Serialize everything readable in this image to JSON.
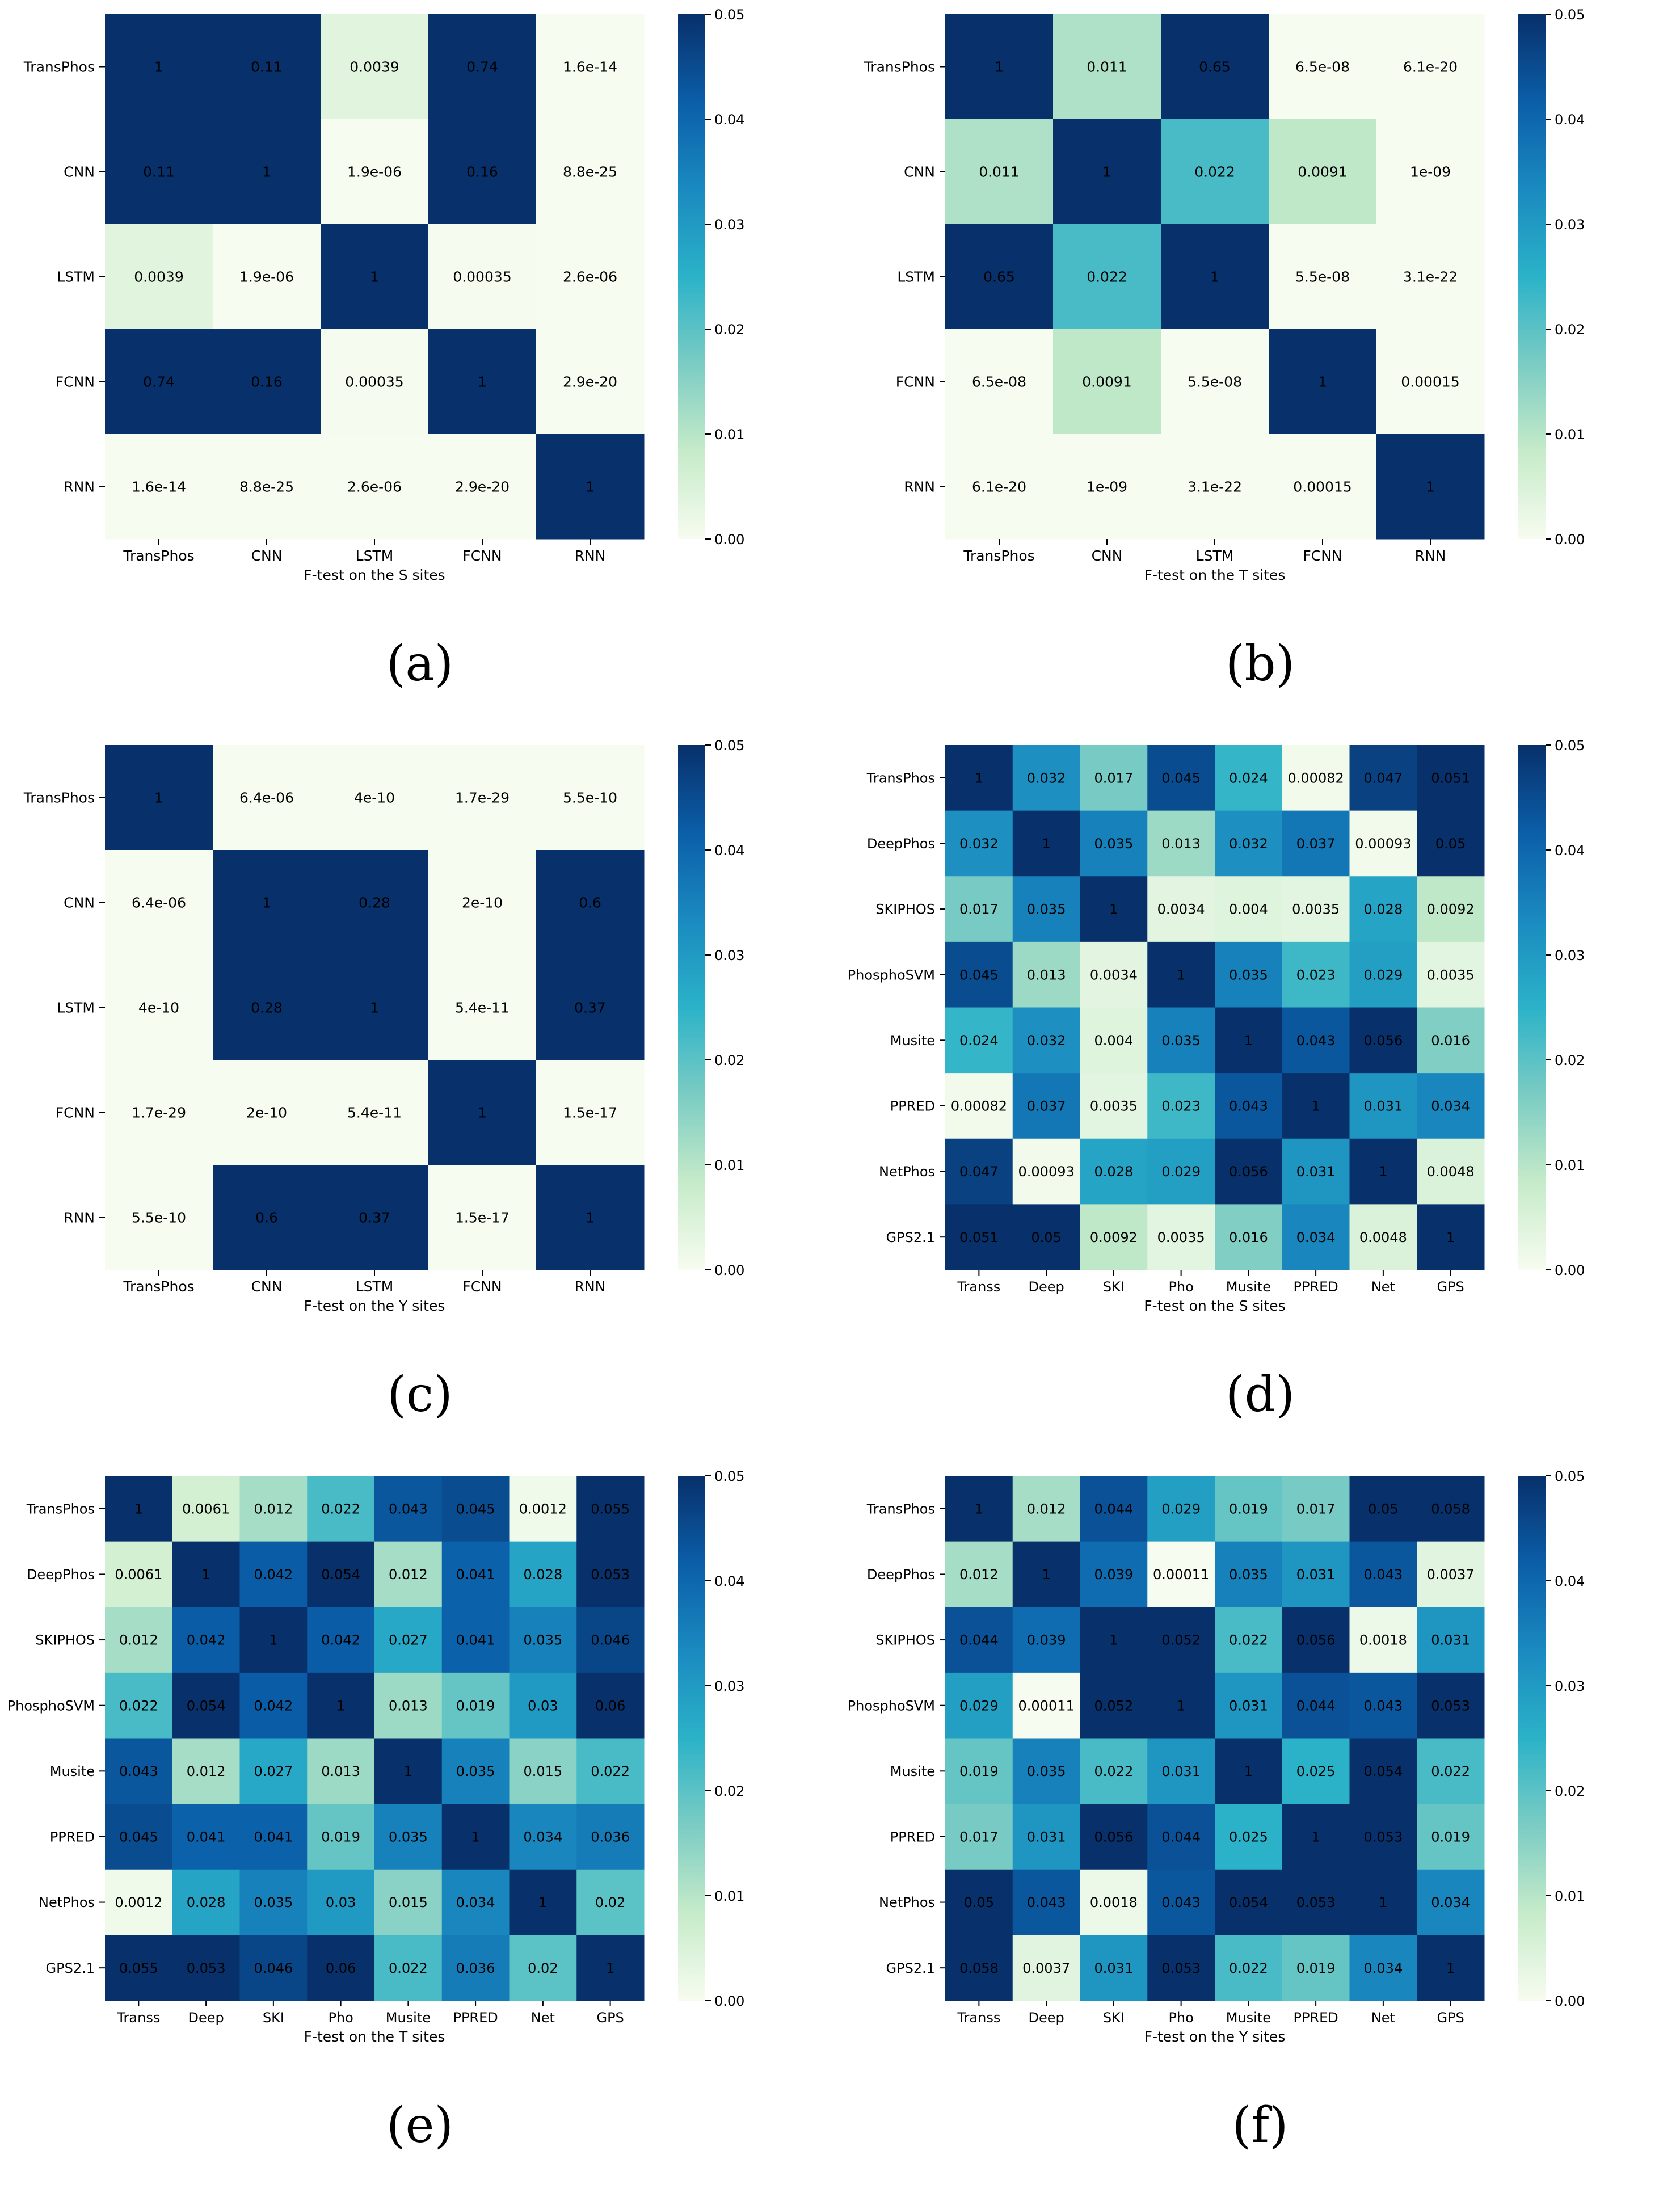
{
  "colormap": [
    "#f7fcf0",
    "#c6ebc9",
    "#7bccc4",
    "#2bb2c8",
    "#1a8ac0",
    "#0b5ea8",
    "#08306b"
  ],
  "chart_data": [
    {
      "panel": "(a)",
      "type": "heatmap",
      "xlabel": "F-test on the S sites",
      "row_labels": [
        "TransPhos",
        "CNN",
        "LSTM",
        "FCNN",
        "RNN"
      ],
      "col_labels": [
        "TransPhos",
        "CNN",
        "LSTM",
        "FCNN",
        "RNN"
      ],
      "values": [
        [
          1,
          0.11,
          0.0039,
          0.74,
          1.6e-14
        ],
        [
          0.11,
          1,
          1.9e-06,
          0.16,
          8.8e-25
        ],
        [
          0.0039,
          1.9e-06,
          1,
          0.00035,
          2.6e-06
        ],
        [
          0.74,
          0.16,
          0.00035,
          1,
          2.9e-20
        ],
        [
          1.6e-14,
          8.8e-25,
          2.6e-06,
          2.9e-20,
          1
        ]
      ],
      "annotations": [
        [
          "1",
          "0.11",
          "0.0039",
          "0.74",
          "1.6e-14"
        ],
        [
          "0.11",
          "1",
          "1.9e-06",
          "0.16",
          "8.8e-25"
        ],
        [
          "0.0039",
          "1.9e-06",
          "1",
          "0.00035",
          "2.6e-06"
        ],
        [
          "0.74",
          "0.16",
          "0.00035",
          "1",
          "2.9e-20"
        ],
        [
          "1.6e-14",
          "8.8e-25",
          "2.6e-06",
          "2.9e-20",
          "1"
        ]
      ],
      "colorbar_range": [
        0,
        0.05
      ],
      "colorbar_ticks": [
        "0.00",
        "0.01",
        "0.02",
        "0.03",
        "0.04",
        "0.05"
      ]
    },
    {
      "panel": "(b)",
      "type": "heatmap",
      "xlabel": "F-test on the T sites",
      "row_labels": [
        "TransPhos",
        "CNN",
        "LSTM",
        "FCNN",
        "RNN"
      ],
      "col_labels": [
        "TransPhos",
        "CNN",
        "LSTM",
        "FCNN",
        "RNN"
      ],
      "values": [
        [
          1,
          0.011,
          0.65,
          6.5e-08,
          6.1e-20
        ],
        [
          0.011,
          1,
          0.022,
          0.0091,
          1e-09
        ],
        [
          0.65,
          0.022,
          1,
          5.5e-08,
          3.1e-22
        ],
        [
          6.5e-08,
          0.0091,
          5.5e-08,
          1,
          0.00015
        ],
        [
          6.1e-20,
          1e-09,
          3.1e-22,
          0.00015,
          1
        ]
      ],
      "annotations": [
        [
          "1",
          "0.011",
          "0.65",
          "6.5e-08",
          "6.1e-20"
        ],
        [
          "0.011",
          "1",
          "0.022",
          "0.0091",
          "1e-09"
        ],
        [
          "0.65",
          "0.022",
          "1",
          "5.5e-08",
          "3.1e-22"
        ],
        [
          "6.5e-08",
          "0.0091",
          "5.5e-08",
          "1",
          "0.00015"
        ],
        [
          "6.1e-20",
          "1e-09",
          "3.1e-22",
          "0.00015",
          "1"
        ]
      ],
      "colorbar_range": [
        0,
        0.05
      ],
      "colorbar_ticks": [
        "0.00",
        "0.01",
        "0.02",
        "0.03",
        "0.04",
        "0.05"
      ]
    },
    {
      "panel": "(c)",
      "type": "heatmap",
      "xlabel": "F-test on the Y sites",
      "row_labels": [
        "TransPhos",
        "CNN",
        "LSTM",
        "FCNN",
        "RNN"
      ],
      "col_labels": [
        "TransPhos",
        "CNN",
        "LSTM",
        "FCNN",
        "RNN"
      ],
      "values": [
        [
          1,
          6.4e-06,
          4e-10,
          1.7e-29,
          5.5e-10
        ],
        [
          6.4e-06,
          1,
          0.28,
          2e-10,
          0.6
        ],
        [
          4e-10,
          0.28,
          1,
          5.4e-11,
          0.37
        ],
        [
          1.7e-29,
          2e-10,
          5.4e-11,
          1,
          1.5e-17
        ],
        [
          5.5e-10,
          0.6,
          0.37,
          1.5e-17,
          1
        ]
      ],
      "annotations": [
        [
          "1",
          "6.4e-06",
          "4e-10",
          "1.7e-29",
          "5.5e-10"
        ],
        [
          "6.4e-06",
          "1",
          "0.28",
          "2e-10",
          "0.6"
        ],
        [
          "4e-10",
          "0.28",
          "1",
          "5.4e-11",
          "0.37"
        ],
        [
          "1.7e-29",
          "2e-10",
          "5.4e-11",
          "1",
          "1.5e-17"
        ],
        [
          "5.5e-10",
          "0.6",
          "0.37",
          "1.5e-17",
          "1"
        ]
      ],
      "colorbar_range": [
        0,
        0.05
      ],
      "colorbar_ticks": [
        "0.00",
        "0.01",
        "0.02",
        "0.03",
        "0.04",
        "0.05"
      ]
    },
    {
      "panel": "(d)",
      "type": "heatmap",
      "xlabel": "F-test on the S sites",
      "row_labels": [
        "TransPhos",
        "DeepPhos",
        "SKIPHOS",
        "PhosphoSVM",
        "Musite",
        "PPRED",
        "NetPhos",
        "GPS2.1"
      ],
      "col_labels": [
        "Transs",
        "Deep",
        "SKI",
        "Pho",
        "Musite",
        "PPRED",
        "Net",
        "GPS"
      ],
      "values": [
        [
          1,
          0.032,
          0.017,
          0.045,
          0.024,
          0.00082,
          0.047,
          0.051
        ],
        [
          0.032,
          1,
          0.035,
          0.013,
          0.032,
          0.037,
          0.00093,
          0.05
        ],
        [
          0.017,
          0.035,
          1,
          0.0034,
          0.004,
          0.0035,
          0.028,
          0.0092
        ],
        [
          0.045,
          0.013,
          0.0034,
          1,
          0.035,
          0.023,
          0.029,
          0.0035
        ],
        [
          0.024,
          0.032,
          0.004,
          0.035,
          1,
          0.043,
          0.056,
          0.016
        ],
        [
          0.00082,
          0.037,
          0.0035,
          0.023,
          0.043,
          1,
          0.031,
          0.034
        ],
        [
          0.047,
          0.00093,
          0.028,
          0.029,
          0.056,
          0.031,
          1,
          0.0048
        ],
        [
          0.051,
          0.05,
          0.0092,
          0.0035,
          0.016,
          0.034,
          0.0048,
          1
        ]
      ],
      "annotations": [
        [
          "1",
          "0.032",
          "0.017",
          "0.045",
          "0.024",
          "0.00082",
          "0.047",
          "0.051"
        ],
        [
          "0.032",
          "1",
          "0.035",
          "0.013",
          "0.032",
          "0.037",
          "0.00093",
          "0.05"
        ],
        [
          "0.017",
          "0.035",
          "1",
          "0.0034",
          "0.004",
          "0.0035",
          "0.028",
          "0.0092"
        ],
        [
          "0.045",
          "0.013",
          "0.0034",
          "1",
          "0.035",
          "0.023",
          "0.029",
          "0.0035"
        ],
        [
          "0.024",
          "0.032",
          "0.004",
          "0.035",
          "1",
          "0.043",
          "0.056",
          "0.016"
        ],
        [
          "0.00082",
          "0.037",
          "0.0035",
          "0.023",
          "0.043",
          "1",
          "0.031",
          "0.034"
        ],
        [
          "0.047",
          "0.00093",
          "0.028",
          "0.029",
          "0.056",
          "0.031",
          "1",
          "0.0048"
        ],
        [
          "0.051",
          "0.05",
          "0.0092",
          "0.0035",
          "0.016",
          "0.034",
          "0.0048",
          "1"
        ]
      ],
      "colorbar_range": [
        0,
        0.05
      ],
      "colorbar_ticks": [
        "0.00",
        "0.01",
        "0.02",
        "0.03",
        "0.04",
        "0.05"
      ]
    },
    {
      "panel": "(e)",
      "type": "heatmap",
      "xlabel": "F-test on the T sites",
      "row_labels": [
        "TransPhos",
        "DeepPhos",
        "SKIPHOS",
        "PhosphoSVM",
        "Musite",
        "PPRED",
        "NetPhos",
        "GPS2.1"
      ],
      "col_labels": [
        "Transs",
        "Deep",
        "SKI",
        "Pho",
        "Musite",
        "PPRED",
        "Net",
        "GPS"
      ],
      "values": [
        [
          1,
          0.0061,
          0.012,
          0.022,
          0.043,
          0.045,
          0.0012,
          0.055
        ],
        [
          0.0061,
          1,
          0.042,
          0.054,
          0.012,
          0.041,
          0.028,
          0.053
        ],
        [
          0.012,
          0.042,
          1,
          0.042,
          0.027,
          0.041,
          0.035,
          0.046
        ],
        [
          0.022,
          0.054,
          0.042,
          1,
          0.013,
          0.019,
          0.03,
          0.06
        ],
        [
          0.043,
          0.012,
          0.027,
          0.013,
          1,
          0.035,
          0.015,
          0.022
        ],
        [
          0.045,
          0.041,
          0.041,
          0.019,
          0.035,
          1,
          0.034,
          0.036
        ],
        [
          0.0012,
          0.028,
          0.035,
          0.03,
          0.015,
          0.034,
          1,
          0.02
        ],
        [
          0.055,
          0.053,
          0.046,
          0.06,
          0.022,
          0.036,
          0.02,
          1
        ]
      ],
      "annotations": [
        [
          "1",
          "0.0061",
          "0.012",
          "0.022",
          "0.043",
          "0.045",
          "0.0012",
          "0.055"
        ],
        [
          "0.0061",
          "1",
          "0.042",
          "0.054",
          "0.012",
          "0.041",
          "0.028",
          "0.053"
        ],
        [
          "0.012",
          "0.042",
          "1",
          "0.042",
          "0.027",
          "0.041",
          "0.035",
          "0.046"
        ],
        [
          "0.022",
          "0.054",
          "0.042",
          "1",
          "0.013",
          "0.019",
          "0.03",
          "0.06"
        ],
        [
          "0.043",
          "0.012",
          "0.027",
          "0.013",
          "1",
          "0.035",
          "0.015",
          "0.022"
        ],
        [
          "0.045",
          "0.041",
          "0.041",
          "0.019",
          "0.035",
          "1",
          "0.034",
          "0.036"
        ],
        [
          "0.0012",
          "0.028",
          "0.035",
          "0.03",
          "0.015",
          "0.034",
          "1",
          "0.02"
        ],
        [
          "0.055",
          "0.053",
          "0.046",
          "0.06",
          "0.022",
          "0.036",
          "0.02",
          "1"
        ]
      ],
      "colorbar_range": [
        0,
        0.05
      ],
      "colorbar_ticks": [
        "0.00",
        "0.01",
        "0.02",
        "0.03",
        "0.04",
        "0.05"
      ]
    },
    {
      "panel": "(f)",
      "type": "heatmap",
      "xlabel": "F-test on the Y sites",
      "row_labels": [
        "TransPhos",
        "DeepPhos",
        "SKIPHOS",
        "PhosphoSVM",
        "Musite",
        "PPRED",
        "NetPhos",
        "GPS2.1"
      ],
      "col_labels": [
        "Transs",
        "Deep",
        "SKI",
        "Pho",
        "Musite",
        "PPRED",
        "Net",
        "GPS"
      ],
      "values": [
        [
          1,
          0.012,
          0.044,
          0.029,
          0.019,
          0.017,
          0.05,
          0.058
        ],
        [
          0.012,
          1,
          0.039,
          0.00011,
          0.035,
          0.031,
          0.043,
          0.0037
        ],
        [
          0.044,
          0.039,
          1,
          0.052,
          0.022,
          0.056,
          0.0018,
          0.031
        ],
        [
          0.029,
          0.00011,
          0.052,
          1,
          0.031,
          0.044,
          0.043,
          0.053
        ],
        [
          0.019,
          0.035,
          0.022,
          0.031,
          1,
          0.025,
          0.054,
          0.022
        ],
        [
          0.017,
          0.031,
          0.056,
          0.044,
          0.025,
          1,
          0.053,
          0.019
        ],
        [
          0.05,
          0.043,
          0.0018,
          0.043,
          0.054,
          0.053,
          1,
          0.034
        ],
        [
          0.058,
          0.0037,
          0.031,
          0.053,
          0.022,
          0.019,
          0.034,
          1
        ]
      ],
      "annotations": [
        [
          "1",
          "0.012",
          "0.044",
          "0.029",
          "0.019",
          "0.017",
          "0.05",
          "0.058"
        ],
        [
          "0.012",
          "1",
          "0.039",
          "0.00011",
          "0.035",
          "0.031",
          "0.043",
          "0.0037"
        ],
        [
          "0.044",
          "0.039",
          "1",
          "0.052",
          "0.022",
          "0.056",
          "0.0018",
          "0.031"
        ],
        [
          "0.029",
          "0.00011",
          "0.052",
          "1",
          "0.031",
          "0.044",
          "0.043",
          "0.053"
        ],
        [
          "0.019",
          "0.035",
          "0.022",
          "0.031",
          "1",
          "0.025",
          "0.054",
          "0.022"
        ],
        [
          "0.017",
          "0.031",
          "0.056",
          "0.044",
          "0.025",
          "1",
          "0.053",
          "0.019"
        ],
        [
          "0.05",
          "0.043",
          "0.0018",
          "0.043",
          "0.054",
          "0.053",
          "1",
          "0.034"
        ],
        [
          "0.058",
          "0.0037",
          "0.031",
          "0.053",
          "0.022",
          "0.019",
          "0.034",
          "1"
        ]
      ],
      "colorbar_range": [
        0,
        0.05
      ],
      "colorbar_ticks": [
        "0.00",
        "0.01",
        "0.02",
        "0.03",
        "0.04",
        "0.05"
      ]
    }
  ]
}
